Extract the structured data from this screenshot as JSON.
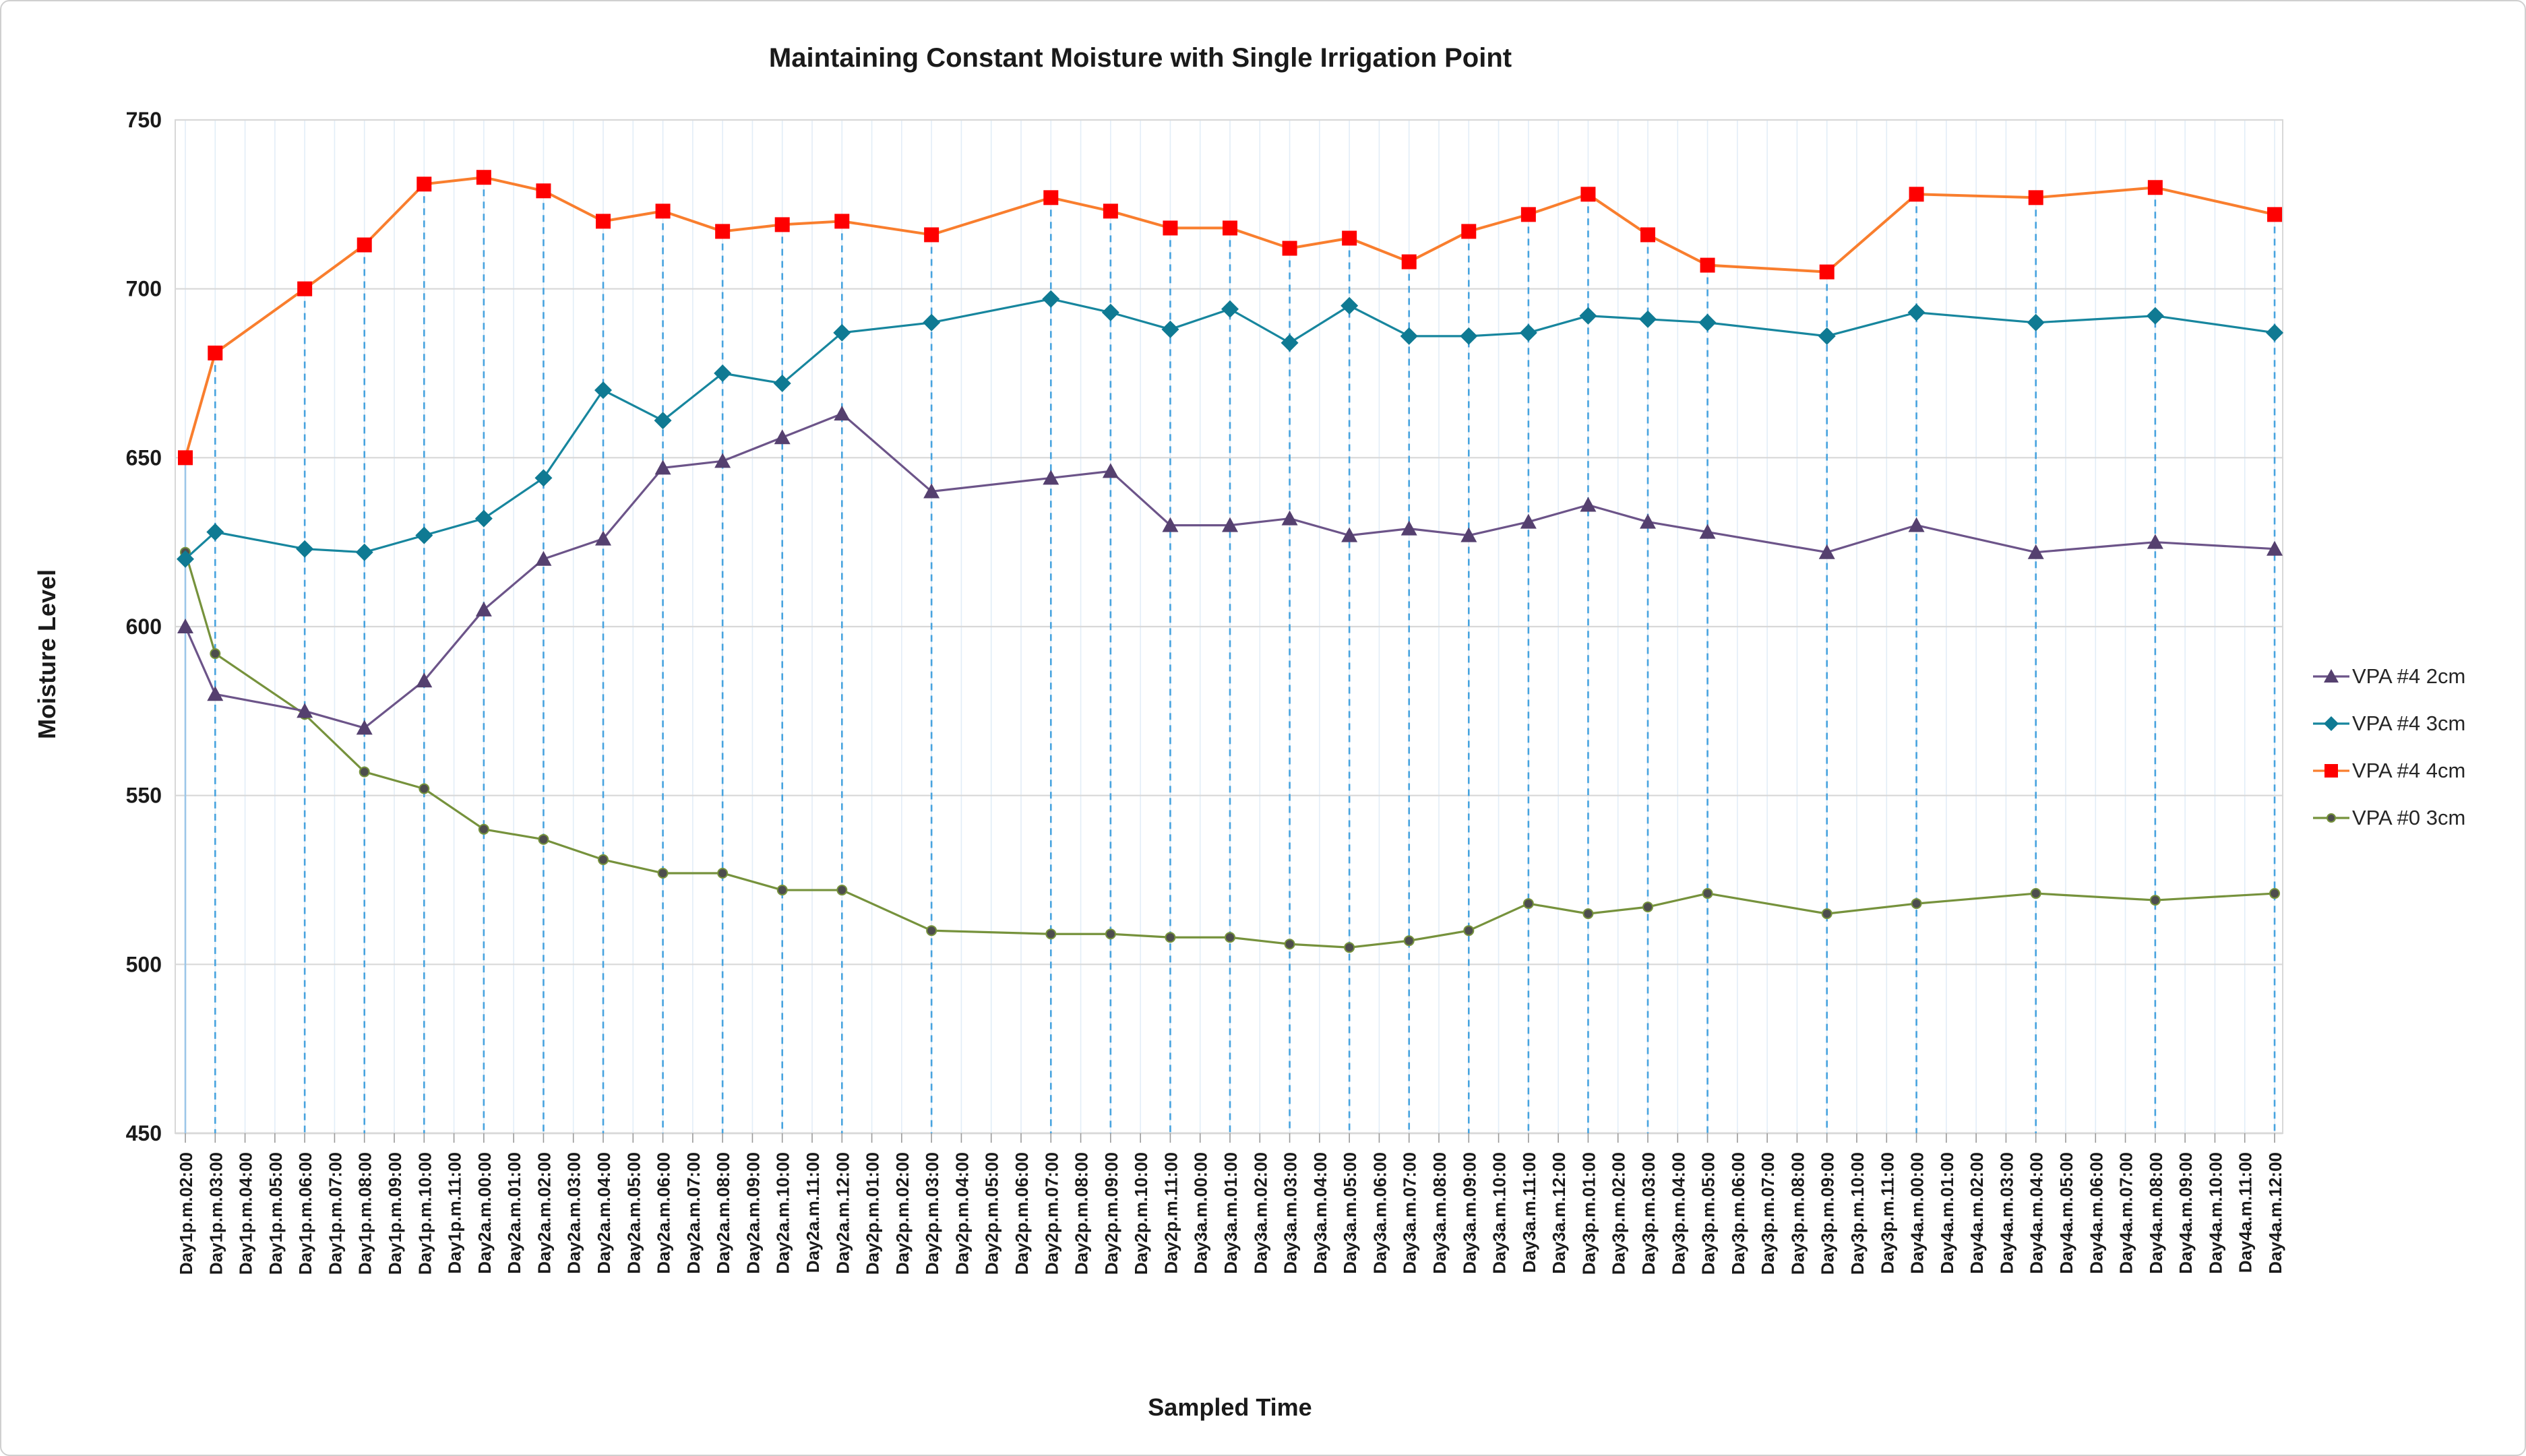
{
  "chart_data": {
    "type": "line",
    "title": "Maintaining Constant Moisture with Single Irrigation Point",
    "xlabel": "Sampled Time",
    "ylabel": "Moisture  Level",
    "ylim": [
      450,
      750
    ],
    "yticks": [
      450,
      500,
      550,
      600,
      650,
      700,
      750
    ],
    "grid": {
      "h_color": "#d8d8d8",
      "minor_v_color": "#e2edf7",
      "drop_line_color": "#47a3df",
      "first_drop_line_color": "#9cc6e8",
      "axis_color": "#bfbfbf",
      "tick_color": "#9a9a9a"
    },
    "legend_position": "right",
    "x_tick_labels": [
      "Day1p.m.02:00",
      "Day1p.m.03:00",
      "Day1p.m.04:00",
      "Day1p.m.05:00",
      "Day1p.m.06:00",
      "Day1p.m.07:00",
      "Day1p.m.08:00",
      "Day1p.m.09:00",
      "Day1p.m.10:00",
      "Day1p.m.11:00",
      "Day2a.m.00:00",
      "Day2a.m.01:00",
      "Day2a.m.02:00",
      "Day2a.m.03:00",
      "Day2a.m.04:00",
      "Day2a.m.05:00",
      "Day2a.m.06:00",
      "Day2a.m.07:00",
      "Day2a.m.08:00",
      "Day2a.m.09:00",
      "Day2a.m.10:00",
      "Day2a.m.11:00",
      "Day2a.m.12:00",
      "Day2p.m.01:00",
      "Day2p.m.02:00",
      "Day2p.m.03:00",
      "Day2p.m.04:00",
      "Day2p.m.05:00",
      "Day2p.m.06:00",
      "Day2p.m.07:00",
      "Day2p.m.08:00",
      "Day2p.m.09:00",
      "Day2p.m.10:00",
      "Day2p.m.11:00",
      "Day3a.m.00:00",
      "Day3a.m.01:00",
      "Day3a.m.02:00",
      "Day3a.m.03:00",
      "Day3a.m.04:00",
      "Day3a.m.05:00",
      "Day3a.m.06:00",
      "Day3a.m.07:00",
      "Day3a.m.08:00",
      "Day3a.m.09:00",
      "Day3a.m.10:00",
      "Day3a.m.11:00",
      "Day3a.m.12:00",
      "Day3p.m.01:00",
      "Day3p.m.02:00",
      "Day3p.m.03:00",
      "Day3p.m.04:00",
      "Day3p.m.05:00",
      "Day3p.m.06:00",
      "Day3p.m.07:00",
      "Day3p.m.08:00",
      "Day3p.m.09:00",
      "Day3p.m.10:00",
      "Day3p.m.11:00",
      "Day4a.m.00:00",
      "Day4a.m.01:00",
      "Day4a.m.02:00",
      "Day4a.m.03:00",
      "Day4a.m.04:00",
      "Day4a.m.05:00",
      "Day4a.m.06:00",
      "Day4a.m.07:00",
      "Day4a.m.08:00",
      "Day4a.m.09:00",
      "Day4a.m.10:00",
      "Day4a.m.11:00",
      "Day4a.m.12:00"
    ],
    "sample_tick_indices": [
      0,
      1,
      4,
      6,
      8,
      10,
      12,
      14,
      16,
      18,
      20,
      22,
      25,
      29,
      31,
      33,
      35,
      37,
      39,
      41,
      43,
      45,
      47,
      49,
      51,
      55,
      58,
      62,
      66,
      70
    ],
    "series": [
      {
        "name": "VPA #4 2cm",
        "marker": "triangle",
        "line_color": "#6c5489",
        "marker_color": "#55406f",
        "values": [
          600,
          580,
          575,
          570,
          584,
          605,
          620,
          626,
          647,
          649,
          656,
          663,
          640,
          644,
          646,
          630,
          630,
          632,
          627,
          629,
          627,
          631,
          636,
          631,
          628,
          622,
          630,
          622,
          625,
          623
        ]
      },
      {
        "name": "VPA #4 3cm",
        "marker": "diamond",
        "line_color": "#17869e",
        "marker_color": "#0f7a93",
        "values": [
          620,
          628,
          623,
          622,
          627,
          632,
          644,
          670,
          661,
          675,
          672,
          687,
          690,
          697,
          693,
          688,
          694,
          684,
          695,
          686,
          686,
          687,
          692,
          691,
          690,
          686,
          693,
          690,
          692,
          687
        ]
      },
      {
        "name": "VPA #4 4cm",
        "marker": "square",
        "line_color": "#f97e2e",
        "marker_color": "#fe0000",
        "values": [
          650,
          681,
          700,
          713,
          731,
          733,
          729,
          720,
          723,
          717,
          719,
          720,
          716,
          727,
          723,
          718,
          718,
          712,
          715,
          708,
          717,
          722,
          728,
          716,
          707,
          705,
          728,
          727,
          730,
          722
        ]
      },
      {
        "name": "VPA #0 3cm",
        "marker": "circle",
        "line_color": "#76923c",
        "marker_color": "#4d4d4d",
        "values": [
          622,
          592,
          574,
          557,
          552,
          540,
          537,
          531,
          527,
          527,
          522,
          522,
          510,
          509,
          509,
          508,
          508,
          506,
          505,
          507,
          510,
          518,
          515,
          517,
          521,
          515,
          518,
          521,
          519,
          521
        ]
      }
    ]
  }
}
